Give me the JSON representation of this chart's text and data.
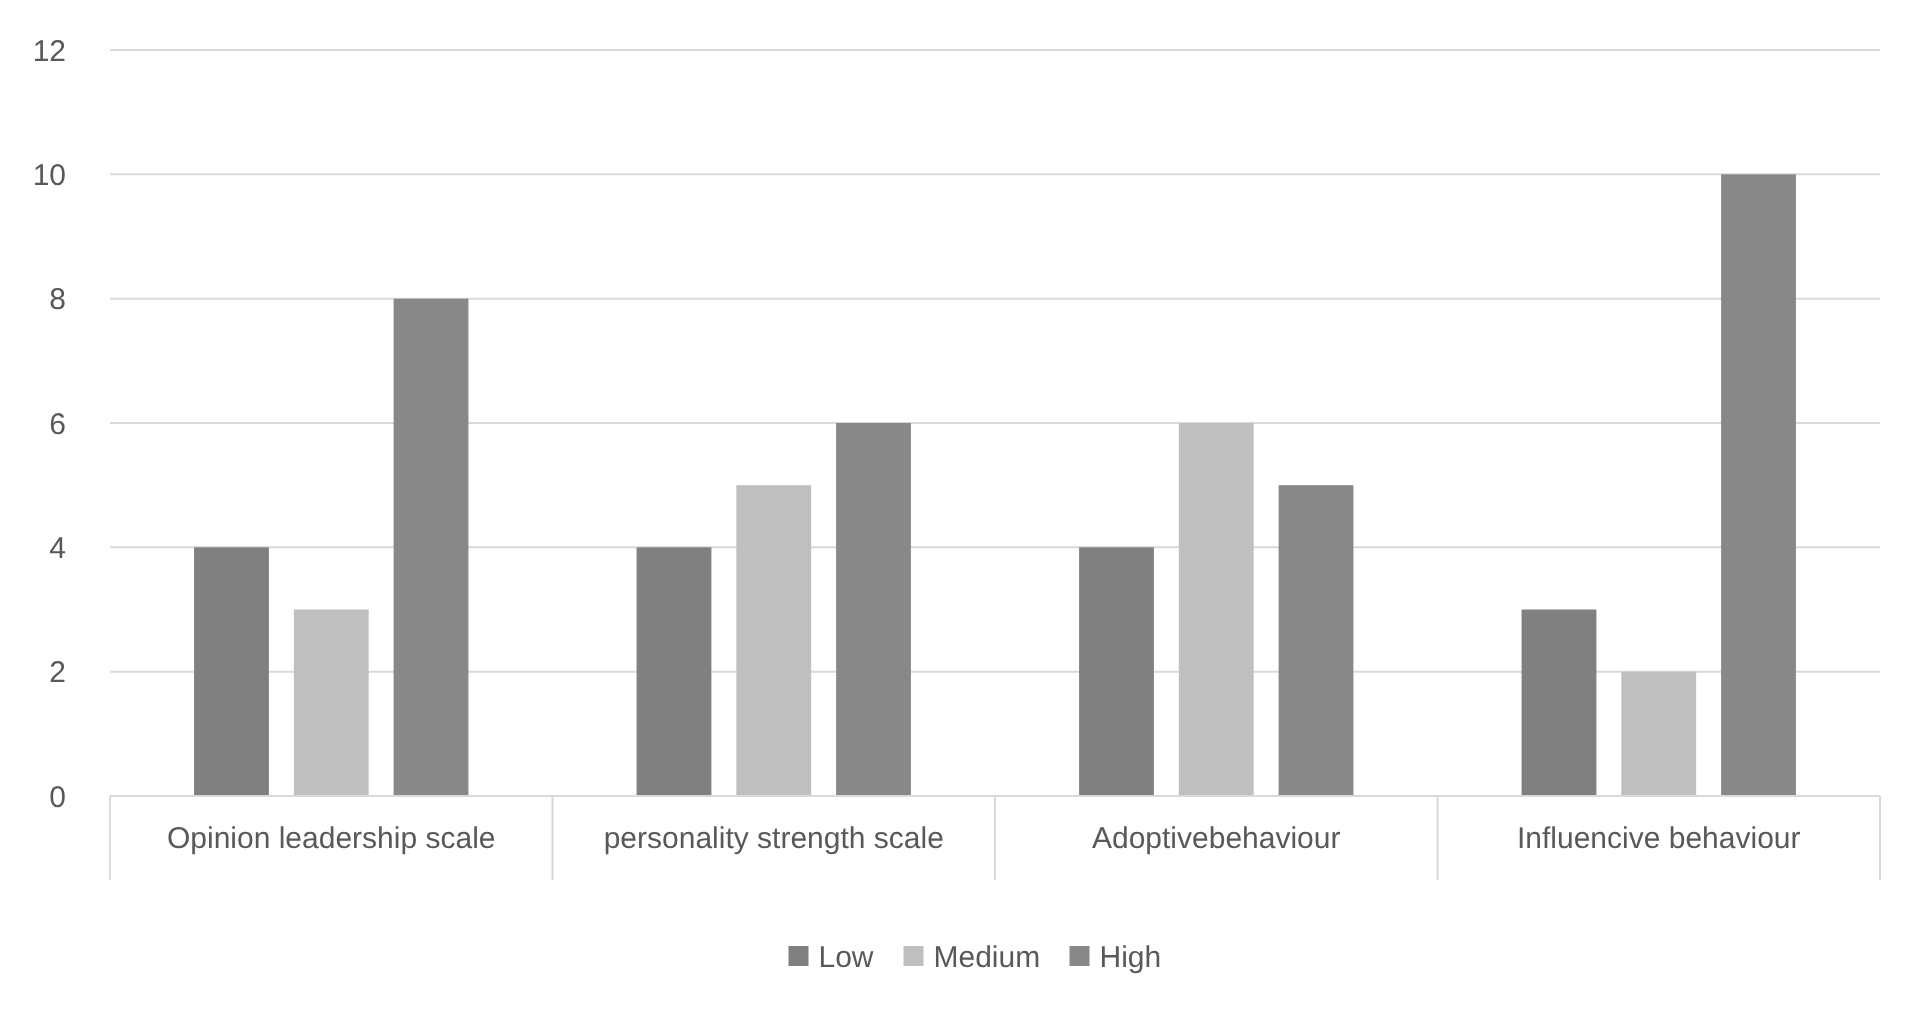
{
  "chart_data": {
    "type": "bar",
    "categories": [
      "Opinion leadership scale",
      "personality strength scale",
      "Adoptivebehaviour",
      "Influencive behaviour"
    ],
    "series": [
      {
        "name": "Low",
        "color": "#808080",
        "values": [
          4,
          4,
          4,
          3
        ]
      },
      {
        "name": "Medium",
        "color": "#bfbfbf",
        "values": [
          3,
          5,
          6,
          2
        ]
      },
      {
        "name": "High",
        "color": "#888888",
        "values": [
          8,
          6,
          5,
          10
        ]
      }
    ],
    "ylim": [
      0,
      12
    ],
    "yticks": [
      0,
      2,
      4,
      6,
      8,
      10,
      12
    ],
    "grid": "y",
    "legend": "bottom"
  }
}
